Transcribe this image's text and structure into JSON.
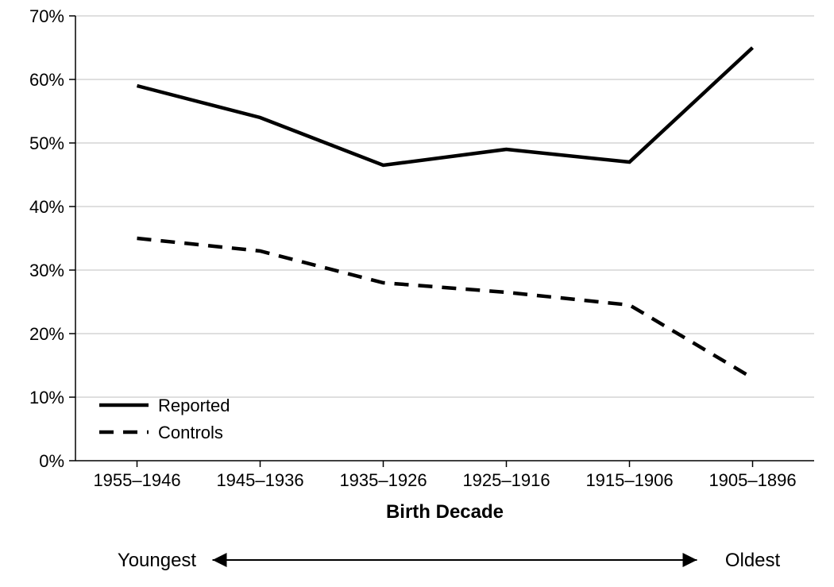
{
  "chart": {
    "type": "line",
    "background_color": "#ffffff",
    "axis_color": "#000000",
    "axis_line_width": 1.5,
    "gridline_color": "#bfbfbf",
    "gridline_width": 1,
    "tick_length": 8,
    "y": {
      "min": 0,
      "max": 70,
      "step": 10,
      "labels": [
        "0%",
        "10%",
        "20%",
        "30%",
        "40%",
        "50%",
        "60%",
        "70%"
      ],
      "label_fontsize": 22,
      "label_color": "#000000"
    },
    "x": {
      "title": "Birth Decade",
      "title_fontsize": 24,
      "title_fontweight": "bold",
      "categories": [
        "1955–1946",
        "1945–1936",
        "1935–1926",
        "1925–1916",
        "1915–1906",
        "1905–1896"
      ],
      "label_fontsize": 22,
      "label_color": "#000000"
    },
    "series": [
      {
        "name": "Reported",
        "values": [
          59,
          54,
          46.5,
          49,
          47,
          65
        ],
        "color": "#000000",
        "line_width": 4.5,
        "dash": "none"
      },
      {
        "name": "Controls",
        "values": [
          35,
          33,
          28,
          26.5,
          24.5,
          13
        ],
        "color": "#000000",
        "line_width": 4.5,
        "dash": "18,12"
      }
    ],
    "legend": {
      "fontsize": 22,
      "entries": [
        "Reported",
        "Controls"
      ]
    },
    "below": {
      "left_label": "Youngest",
      "right_label": "Oldest",
      "arrow_color": "#000000",
      "arrow_line_width": 2,
      "label_fontsize": 24
    }
  }
}
